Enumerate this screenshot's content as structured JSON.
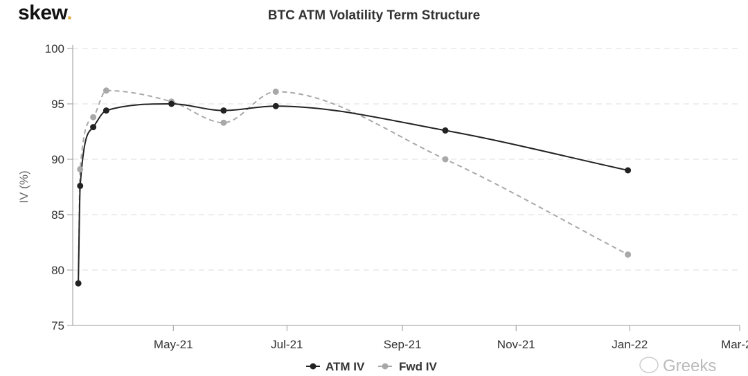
{
  "brand": {
    "name": "skew",
    "dot": ".",
    "accent": "#e0b04a"
  },
  "watermark": "Greeks",
  "chart_data": {
    "type": "line",
    "title": "BTC ATM Volatility Term Structure",
    "xlabel": "",
    "ylabel": "IV (%)",
    "ylim": [
      75,
      100
    ],
    "yticks": [
      75,
      80,
      85,
      90,
      95,
      100
    ],
    "xlim": [
      "2021-03-08",
      "2022-03-01"
    ],
    "xticks": [
      {
        "date": "2021-05-01",
        "label": "May-21"
      },
      {
        "date": "2021-07-01",
        "label": "Jul-21"
      },
      {
        "date": "2021-09-01",
        "label": "Sep-21"
      },
      {
        "date": "2021-11-01",
        "label": "Nov-21"
      },
      {
        "date": "2022-01-01",
        "label": "Jan-22"
      },
      {
        "date": "2022-03-01",
        "label": "Mar-22"
      }
    ],
    "grid": "horizontal dashed",
    "legend": "bottom-center",
    "series": [
      {
        "name": "ATM IV",
        "color": "#222222",
        "dash": false,
        "x": [
          "2021-03-11",
          "2021-03-12",
          "2021-03-19",
          "2021-03-26",
          "2021-04-30",
          "2021-05-28",
          "2021-06-25",
          "2021-09-24",
          "2021-12-31"
        ],
        "y": [
          78.8,
          87.6,
          92.9,
          94.4,
          95.0,
          94.4,
          94.8,
          92.6,
          89.0
        ]
      },
      {
        "name": "Fwd IV",
        "color": "#a8a8a8",
        "dash": true,
        "x": [
          "2021-03-11",
          "2021-03-12",
          "2021-03-19",
          "2021-03-26",
          "2021-04-30",
          "2021-05-28",
          "2021-06-25",
          "2021-09-24",
          "2021-12-31"
        ],
        "y": [
          78.8,
          89.1,
          93.8,
          96.2,
          95.2,
          93.3,
          96.1,
          90.0,
          81.4
        ]
      }
    ]
  }
}
